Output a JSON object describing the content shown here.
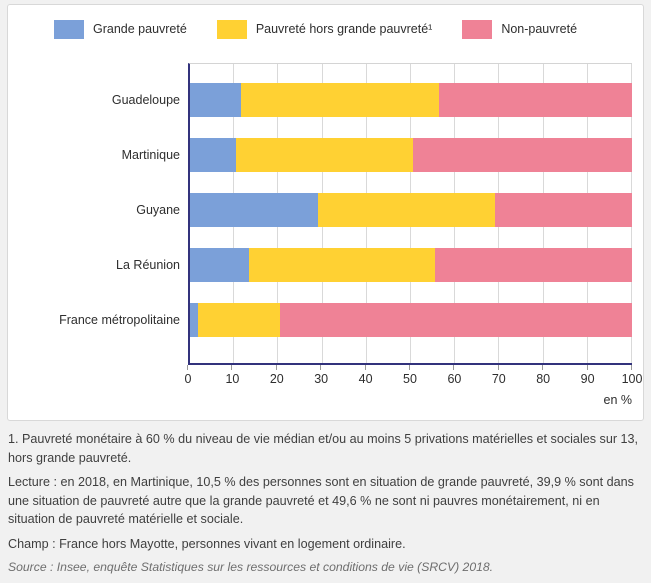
{
  "legend": {
    "items": [
      {
        "label": "Grande pauvreté",
        "color": "#7ba0d9"
      },
      {
        "label": "Pauvreté hors grande pauvreté¹",
        "color": "#ffd133"
      },
      {
        "label": "Non-pauvreté",
        "color": "#ef8296"
      }
    ]
  },
  "chart_data": {
    "type": "bar",
    "orientation": "horizontal",
    "stacked": true,
    "categories": [
      "Guadeloupe",
      "Martinique",
      "Guyane",
      "La Réunion",
      "France métropolitaine"
    ],
    "series": [
      {
        "name": "Grande pauvreté",
        "color": "#7ba0d9",
        "values": [
          11.6,
          10.5,
          28.9,
          13.3,
          1.9
        ]
      },
      {
        "name": "Pauvreté hors grande pauvreté¹",
        "color": "#ffd133",
        "values": [
          44.7,
          39.9,
          40.0,
          42.1,
          18.4
        ]
      },
      {
        "name": "Non-pauvreté",
        "color": "#ef8296",
        "values": [
          43.7,
          49.6,
          31.1,
          44.6,
          79.7
        ]
      }
    ],
    "x_axis": {
      "range": [
        0,
        100
      ],
      "ticks": [
        0,
        10,
        20,
        30,
        40,
        50,
        60,
        70,
        80,
        90,
        100
      ],
      "unit_label": "en %"
    },
    "grid": true,
    "legend_position": "top",
    "axis_color": "#32327c",
    "gridline_color": "#d9d9d9"
  },
  "notes": {
    "footnote": "1. Pauvreté monétaire à 60 % du niveau de vie médian et/ou au moins 5 privations matérielles et sociales sur 13, hors grande pauvreté.",
    "lecture": "Lecture : en 2018, en Martinique, 10,5 % des personnes sont en situation de grande pauvreté, 39,9 % sont dans une situation de pauvreté autre que la grande pauvreté et 49,6 % ne sont ni pauvres monétairement, ni en situation de pauvreté matérielle et sociale.",
    "champ": "Champ : France hors Mayotte, personnes vivant en logement ordinaire.",
    "source": "Source : Insee, enquête Statistiques sur les ressources et conditions de vie (SRCV) 2018."
  }
}
